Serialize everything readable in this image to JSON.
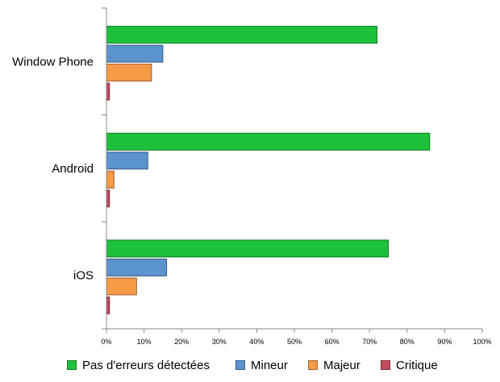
{
  "chart_data": {
    "type": "bar",
    "orientation": "horizontal",
    "title": "",
    "xlabel": "",
    "ylabel": "",
    "categories": [
      "Window Phone",
      "Android",
      "iOS"
    ],
    "series": [
      {
        "name": "Pas d'erreurs détectées",
        "color": "#1ec13c",
        "values": [
          72,
          86,
          75
        ]
      },
      {
        "name": "Mineur",
        "color": "#5b93cf",
        "values": [
          15,
          11,
          16
        ]
      },
      {
        "name": "Majeur",
        "color": "#f79a46",
        "values": [
          12,
          2,
          8
        ]
      },
      {
        "name": "Critique",
        "color": "#c4495c",
        "values": [
          0.8,
          0.8,
          0.8
        ]
      }
    ],
    "xlim": [
      0,
      100
    ],
    "xticks": [
      "0%",
      "10%",
      "20%",
      "30%",
      "40%",
      "50%",
      "60%",
      "70%",
      "80%",
      "90%",
      "100%"
    ],
    "grid": false,
    "legend_position": "bottom"
  }
}
